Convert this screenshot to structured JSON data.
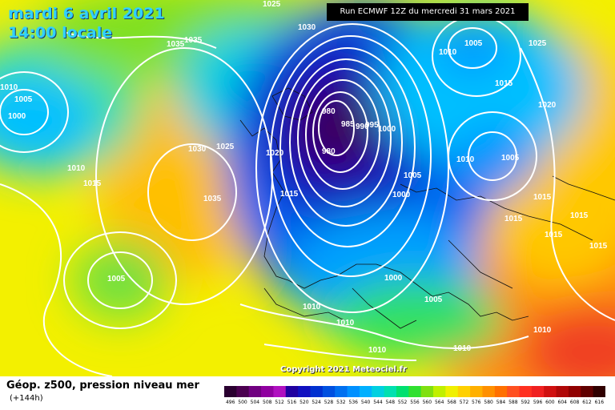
{
  "header": {
    "date_line_1": "mardi 6 avril 2021",
    "date_line_2": "14:00 locale",
    "run_banner": "Run ECMWF 12Z du mercredi 31 mars 2021"
  },
  "footer": {
    "title": "Géop. z500, pression niveau mer",
    "subtitle": "(+144h)",
    "copyright": "Copyright 2021 Meteociel.fr"
  },
  "legend": {
    "ticks": [
      "496",
      "500",
      "504",
      "508",
      "512",
      "516",
      "520",
      "524",
      "528",
      "532",
      "536",
      "540",
      "544",
      "548",
      "552",
      "556",
      "560",
      "564",
      "568",
      "572",
      "576",
      "580",
      "584",
      "588",
      "592",
      "596",
      "600",
      "604",
      "608",
      "612",
      "616"
    ],
    "colors": [
      "#2a0030",
      "#4b0050",
      "#700080",
      "#9000a0",
      "#b010c0",
      "#2000a0",
      "#1010c0",
      "#0030d0",
      "#0050e0",
      "#0070f0",
      "#0090ff",
      "#00b0ff",
      "#00d0e0",
      "#00e0b0",
      "#00e070",
      "#30e030",
      "#80e010",
      "#c0f000",
      "#f0f000",
      "#ffd000",
      "#ffb000",
      "#ff9000",
      "#ff7000",
      "#ff5020",
      "#ff3020",
      "#f02020",
      "#d01010",
      "#b00808",
      "#900000",
      "#600000",
      "#300000"
    ]
  },
  "pressure_labels": [
    "1025",
    "1030",
    "1035",
    "1035",
    "1010",
    "1005",
    "1000",
    "1030",
    "1025",
    "1020",
    "1010",
    "1015",
    "1035",
    "980",
    "985",
    "990",
    "995",
    "1000",
    "980",
    "1005",
    "1000",
    "1015",
    "1010",
    "1005",
    "1025",
    "1015",
    "1020",
    "1010",
    "1005",
    "1015",
    "1015",
    "1015",
    "1015",
    "1015",
    "1005",
    "1010",
    "1010",
    "1000",
    "1005",
    "1010",
    "1010",
    "1010"
  ]
}
